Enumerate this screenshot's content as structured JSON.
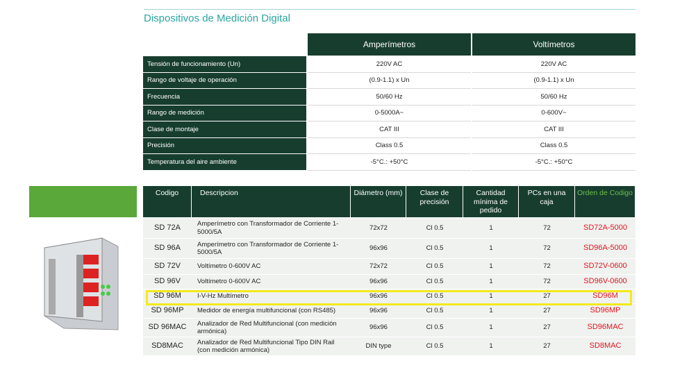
{
  "title": "Dispositivos de Medición Digital",
  "spec_table": {
    "headers": [
      "Amperímetros",
      "Voltímetros"
    ],
    "rows": [
      [
        "Tensión de funcionamiento (Un)",
        "220V AC",
        "220V AC"
      ],
      [
        "Rango de voltaje de operación",
        "(0.9-1.1) x Un",
        "(0.9-1.1) x Un"
      ],
      [
        "Frecuencia",
        "50/60 Hz",
        "50/60 Hz"
      ],
      [
        "Rango de medición",
        "0-5000A~",
        "0-600V~"
      ],
      [
        "Clase de montaje",
        "CAT III",
        "CAT III"
      ],
      [
        "Precisión",
        "Class 0.5",
        "Class 0.5"
      ],
      [
        "Temperatura del aire ambiente",
        "-5°C.: +50°C",
        "-5°C.: +50°C"
      ]
    ]
  },
  "product_table": {
    "headers": [
      "Codigo",
      "Descripcion",
      "Diámetro (mm)",
      "Clase de precisión",
      "Cantidad mínima de pedido",
      "PCs en una caja",
      "Orden de Codigo"
    ],
    "rows": [
      [
        "SD 72A",
        "Amperímetro con Transformador de Corriente 1-5000/5A",
        "72x72",
        "Cl 0.5",
        "1",
        "72",
        "SD72A-5000"
      ],
      [
        "SD 96A",
        "Amperímetro con Transformador de Corriente 1-5000/5A",
        "96x96",
        "Cl 0.5",
        "1",
        "72",
        "SD96A-5000"
      ],
      [
        "SD 72V",
        "Voltímetro 0-600V AC",
        "72x72",
        "Cl 0.5",
        "1",
        "72",
        "SD72V-0600"
      ],
      [
        "SD 96V",
        "Voltímetro 0-600V AC",
        "96x96",
        "Cl 0.5",
        "1",
        "72",
        "SD96V-0600"
      ],
      [
        "SD 96M",
        "I-V-Hz Multímetro",
        "96x96",
        "Cl 0.5",
        "1",
        "27",
        "SD96M"
      ],
      [
        "SD 96MP",
        "Medidor de energía multifuncional (con RS485)",
        "96x96",
        "Cl 0.5",
        "1",
        "27",
        "SD96MP"
      ],
      [
        "SD 96MAC",
        "Analizador de Red Multifuncional (con medición armónica)",
        "96x96",
        "Cl 0.5",
        "1",
        "27",
        "SD96MAC"
      ],
      [
        "SD8MAC",
        "Analizador de Red Multifuncional Tipo DIN Rail (con medición armónica)",
        "DIN type",
        "Cl 0.5",
        "1",
        "27",
        "SD8MAC"
      ]
    ],
    "highlighted_row": 4
  }
}
